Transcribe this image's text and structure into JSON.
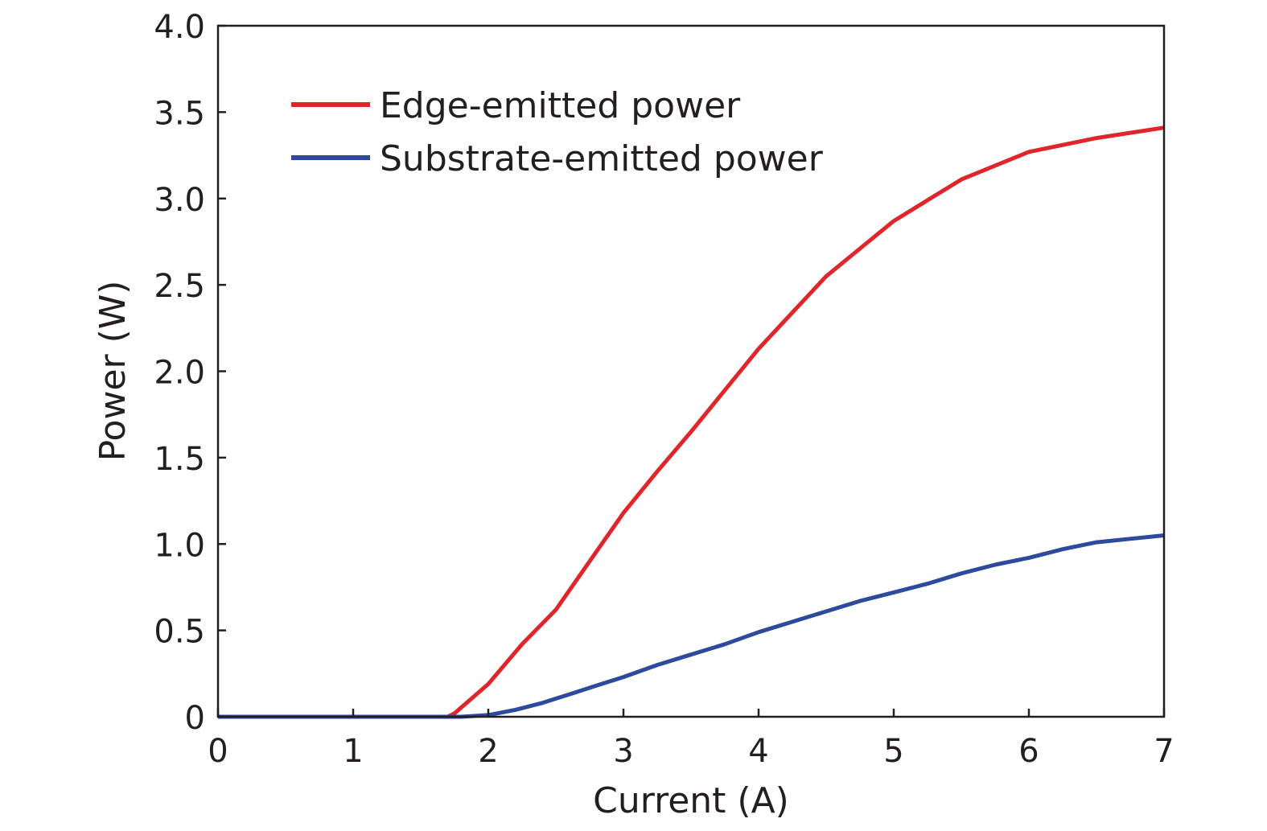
{
  "chart_data": {
    "type": "line",
    "title": "",
    "xlabel": "Current (A)",
    "ylabel": "Power (W)",
    "xlim": [
      0,
      7
    ],
    "ylim": [
      0,
      4.0
    ],
    "x_ticks": [
      "0",
      "1",
      "2",
      "3",
      "4",
      "5",
      "6",
      "7"
    ],
    "y_ticks": [
      "0",
      "0.5",
      "1.0",
      "1.5",
      "2.0",
      "2.5",
      "3.0",
      "3.5",
      "4.0"
    ],
    "grid": false,
    "legend_position": "top-left",
    "series": [
      {
        "name": "Edge-emitted power",
        "color": "#e0262b",
        "points": [
          [
            0,
            0
          ],
          [
            1.7,
            0
          ],
          [
            1.75,
            0.02
          ],
          [
            2.0,
            0.19
          ],
          [
            2.25,
            0.42
          ],
          [
            2.5,
            0.62
          ],
          [
            2.75,
            0.9
          ],
          [
            3.0,
            1.18
          ],
          [
            3.25,
            1.42
          ],
          [
            3.5,
            1.65
          ],
          [
            3.75,
            1.89
          ],
          [
            4.0,
            2.13
          ],
          [
            4.25,
            2.34
          ],
          [
            4.5,
            2.55
          ],
          [
            4.75,
            2.71
          ],
          [
            5.0,
            2.87
          ],
          [
            5.25,
            2.99
          ],
          [
            5.5,
            3.11
          ],
          [
            5.75,
            3.19
          ],
          [
            6.0,
            3.27
          ],
          [
            6.25,
            3.31
          ],
          [
            6.5,
            3.35
          ],
          [
            6.75,
            3.38
          ],
          [
            7.0,
            3.41
          ]
        ]
      },
      {
        "name": "Substrate-emitted power",
        "color": "#2e4a9e",
        "points": [
          [
            0,
            0
          ],
          [
            1.8,
            0
          ],
          [
            2.0,
            0.01
          ],
          [
            2.2,
            0.04
          ],
          [
            2.4,
            0.08
          ],
          [
            2.6,
            0.13
          ],
          [
            2.8,
            0.18
          ],
          [
            3.0,
            0.23
          ],
          [
            3.25,
            0.3
          ],
          [
            3.5,
            0.36
          ],
          [
            3.75,
            0.42
          ],
          [
            4.0,
            0.49
          ],
          [
            4.25,
            0.55
          ],
          [
            4.5,
            0.61
          ],
          [
            4.75,
            0.67
          ],
          [
            5.0,
            0.72
          ],
          [
            5.25,
            0.77
          ],
          [
            5.5,
            0.83
          ],
          [
            5.75,
            0.88
          ],
          [
            6.0,
            0.92
          ],
          [
            6.25,
            0.97
          ],
          [
            6.5,
            1.01
          ],
          [
            6.75,
            1.03
          ],
          [
            7.0,
            1.05
          ]
        ]
      }
    ]
  }
}
